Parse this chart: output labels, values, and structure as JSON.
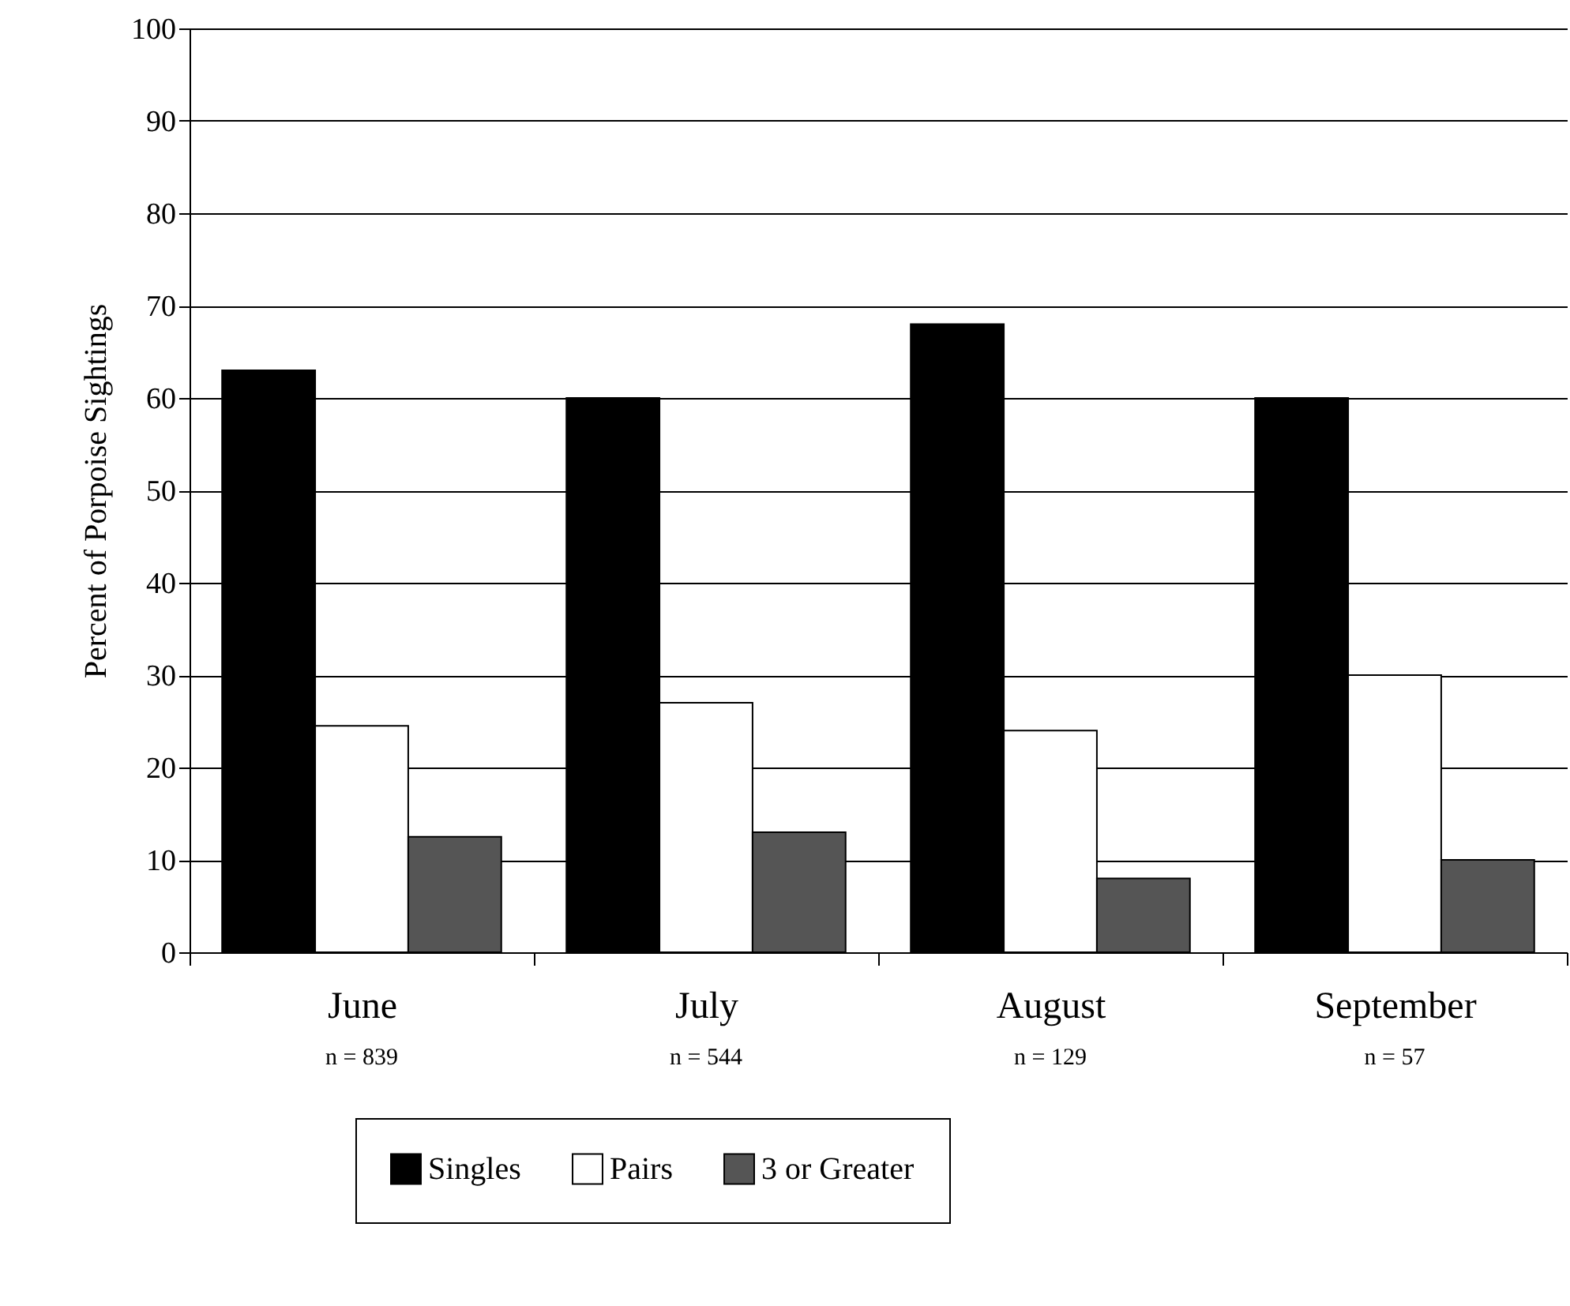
{
  "chart_data": {
    "type": "bar",
    "ylabel": "Percent of Porpoise Sightings",
    "categories": [
      "June",
      "July",
      "August",
      "September"
    ],
    "series": [
      {
        "name": "Singles",
        "color": "#000000",
        "values": [
          63,
          60,
          68,
          60
        ]
      },
      {
        "name": "Pairs",
        "color": "#ffffff",
        "values": [
          24.5,
          27,
          24,
          30
        ]
      },
      {
        "name": "3 or Greater",
        "color": "#555555",
        "values": [
          12.5,
          13,
          8,
          10
        ]
      }
    ],
    "ylim": [
      0,
      100
    ],
    "yticks": [
      0,
      10,
      20,
      30,
      40,
      50,
      60,
      70,
      80,
      90,
      100
    ],
    "grid": "y",
    "legend": "bottom",
    "annotations": [
      "n = 839",
      "n = 544",
      "n = 129",
      "n = 57"
    ]
  }
}
